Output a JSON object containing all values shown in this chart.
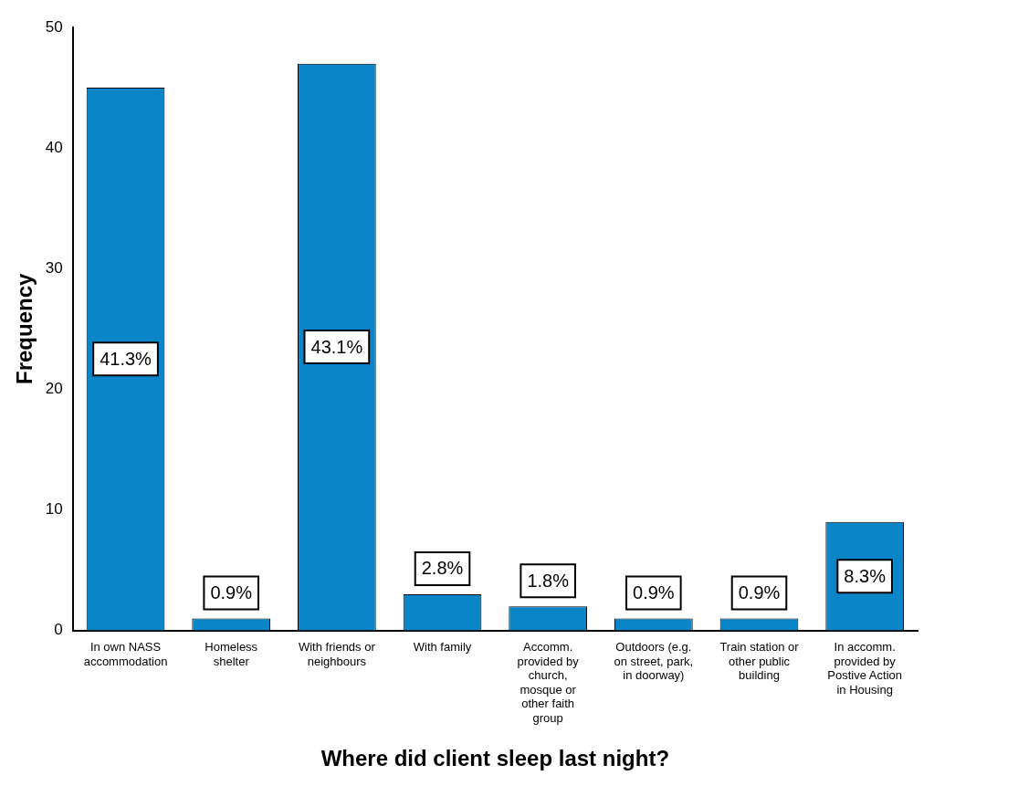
{
  "chart_data": {
    "type": "bar",
    "xlabel": "Where did client sleep last night?",
    "ylabel": "Frequency",
    "categories": [
      "In own NASS accommodation",
      "Homeless shelter",
      "With friends or neighbours",
      "With family",
      "Accomm. provided by church, mosque or other faith group",
      "Outdoors (e.g. on street, park, in doorway)",
      "Train station or other public building",
      "In accomm. provided by Postive Action in Housing"
    ],
    "values": [
      45,
      1,
      47,
      3,
      2,
      1,
      1,
      9
    ],
    "annotations": [
      "41.3%",
      "0.9%",
      "43.1%",
      "2.8%",
      "1.8%",
      "0.9%",
      "0.9%",
      "8.3%"
    ],
    "color": "#0a86c8",
    "ylim": [
      0,
      50
    ],
    "yticks": [
      0,
      10,
      20,
      30,
      40,
      50
    ],
    "grid": false,
    "legend": false
  }
}
